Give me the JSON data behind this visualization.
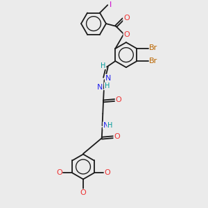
{
  "bg_color": "#ebebeb",
  "bond_color": "#1a1a1a",
  "atom_colors": {
    "O": "#ee3333",
    "N": "#2222ee",
    "Br": "#bb6600",
    "I": "#cc00cc",
    "H": "#009999",
    "C": "#1a1a1a"
  },
  "bond_lw": 1.3,
  "font_size": 8.0,
  "font_size_small": 7.0,
  "figsize": [
    3.0,
    3.0
  ],
  "dpi": 100,
  "xlim": [
    -1.2,
    3.8
  ],
  "ylim": [
    -5.8,
    2.0
  ]
}
